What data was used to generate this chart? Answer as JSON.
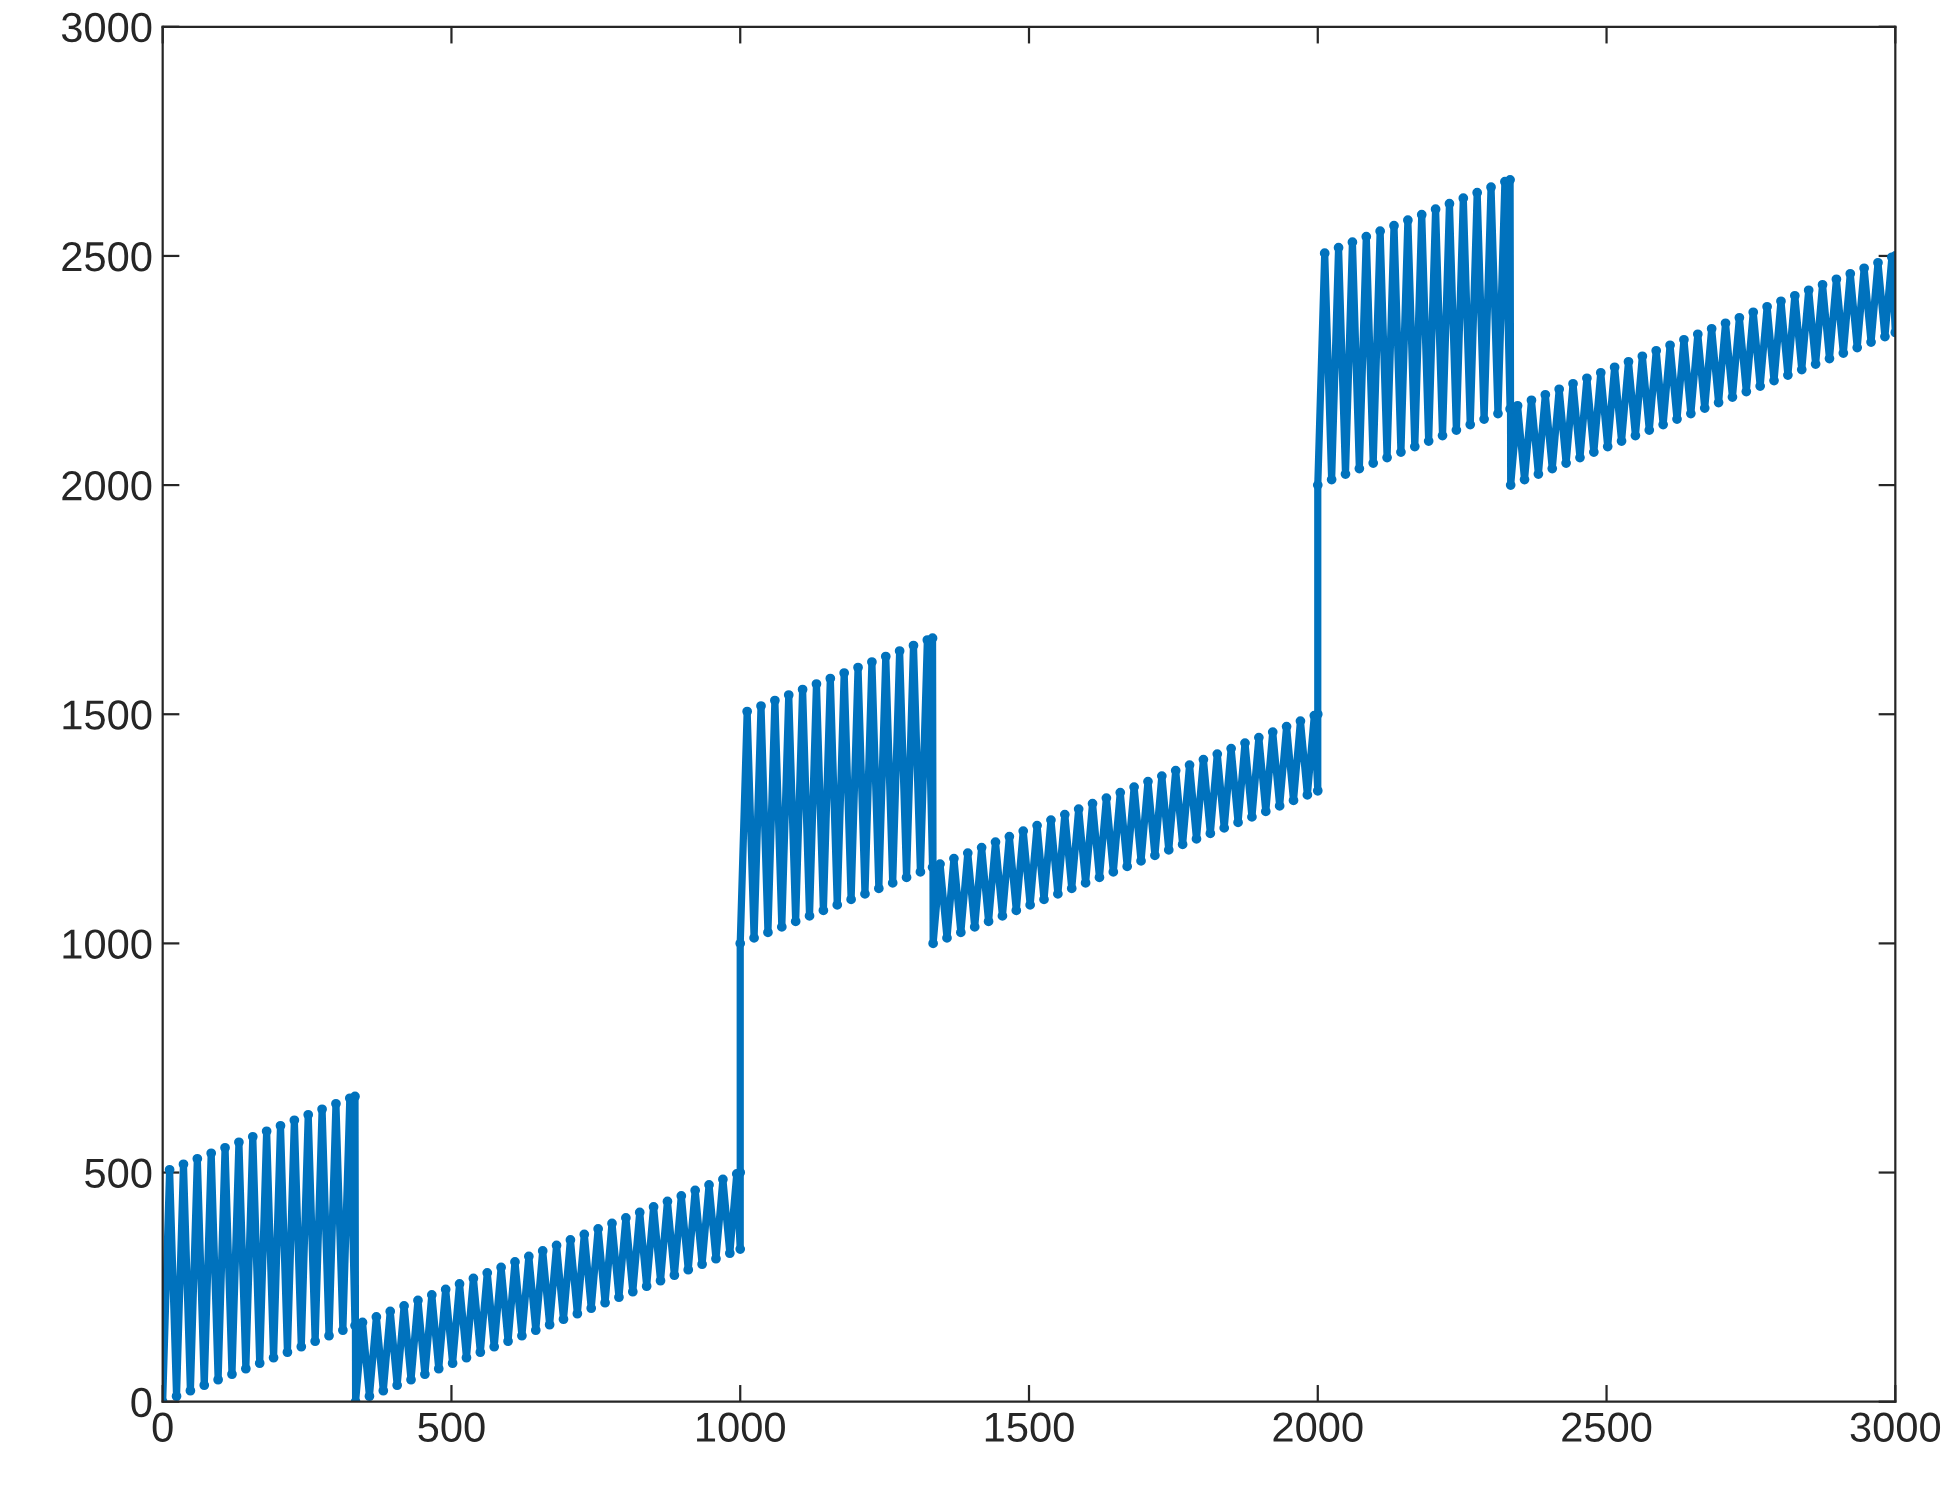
{
  "chart_data": {
    "type": "line",
    "x": [
      0,
      12,
      24,
      36,
      48,
      60,
      72,
      84,
      96,
      108,
      120,
      132,
      144,
      156,
      168,
      180,
      192,
      204,
      216,
      228,
      240,
      252,
      264,
      276,
      288,
      300,
      312,
      324,
      333,
      333,
      334,
      346,
      358,
      370,
      382,
      394,
      406,
      418,
      430,
      442,
      454,
      466,
      478,
      490,
      502,
      514,
      526,
      538,
      550,
      562,
      574,
      586,
      598,
      610,
      622,
      634,
      646,
      658,
      670,
      682,
      694,
      706,
      718,
      730,
      742,
      754,
      766,
      778,
      790,
      802,
      814,
      826,
      838,
      850,
      862,
      874,
      886,
      898,
      910,
      922,
      934,
      946,
      958,
      970,
      982,
      994,
      1000,
      1000,
      1000,
      1012,
      1024,
      1036,
      1048,
      1060,
      1072,
      1084,
      1096,
      1108,
      1120,
      1132,
      1144,
      1156,
      1168,
      1180,
      1192,
      1204,
      1216,
      1228,
      1240,
      1252,
      1264,
      1276,
      1288,
      1300,
      1312,
      1324,
      1333,
      1333,
      1334,
      1346,
      1358,
      1370,
      1382,
      1394,
      1406,
      1418,
      1430,
      1442,
      1454,
      1466,
      1478,
      1490,
      1502,
      1514,
      1526,
      1538,
      1550,
      1562,
      1574,
      1586,
      1598,
      1610,
      1622,
      1634,
      1646,
      1658,
      1670,
      1682,
      1694,
      1706,
      1718,
      1730,
      1742,
      1754,
      1766,
      1778,
      1790,
      1802,
      1814,
      1826,
      1838,
      1850,
      1862,
      1874,
      1886,
      1898,
      1910,
      1922,
      1934,
      1946,
      1958,
      1970,
      1982,
      1994,
      2000,
      2000,
      2000,
      2012,
      2024,
      2036,
      2048,
      2060,
      2072,
      2084,
      2096,
      2108,
      2120,
      2132,
      2144,
      2156,
      2168,
      2180,
      2192,
      2204,
      2216,
      2228,
      2240,
      2252,
      2264,
      2276,
      2288,
      2300,
      2312,
      2324,
      2333,
      2333,
      2334,
      2346,
      2358,
      2370,
      2382,
      2394,
      2406,
      2418,
      2430,
      2442,
      2454,
      2466,
      2478,
      2490,
      2502,
      2514,
      2526,
      2538,
      2550,
      2562,
      2574,
      2586,
      2598,
      2610,
      2622,
      2634,
      2646,
      2658,
      2670,
      2682,
      2694,
      2706,
      2718,
      2730,
      2742,
      2754,
      2766,
      2778,
      2790,
      2802,
      2814,
      2826,
      2838,
      2850,
      2862,
      2874,
      2886,
      2898,
      2910,
      2922,
      2934,
      2946,
      2958,
      2970,
      2982,
      2994,
      3000,
      3000
    ],
    "series": [
      {
        "color": "#0072bd",
        "values": [
          0,
          506,
          12,
          518,
          24,
          530,
          36,
          542,
          48,
          554,
          60,
          566,
          72,
          578,
          84,
          590,
          96,
          602,
          108,
          614,
          120,
          626,
          132,
          638,
          144,
          650,
          156,
          662,
          166,
          666,
          0,
          173,
          12,
          185,
          24,
          197,
          36,
          209,
          48,
          221,
          60,
          233,
          72,
          245,
          84,
          257,
          96,
          269,
          108,
          281,
          120,
          293,
          132,
          305,
          144,
          317,
          156,
          329,
          168,
          341,
          180,
          353,
          192,
          365,
          204,
          377,
          216,
          389,
          228,
          401,
          240,
          413,
          252,
          425,
          264,
          437,
          276,
          449,
          288,
          461,
          300,
          473,
          312,
          485,
          324,
          497,
          333,
          500,
          1000,
          1506,
          1012,
          1518,
          1024,
          1530,
          1036,
          1542,
          1048,
          1554,
          1060,
          1566,
          1072,
          1578,
          1084,
          1590,
          1096,
          1602,
          1108,
          1614,
          1120,
          1626,
          1132,
          1638,
          1144,
          1650,
          1156,
          1662,
          1166,
          1666,
          1000,
          1173,
          1012,
          1185,
          1024,
          1197,
          1036,
          1209,
          1048,
          1221,
          1060,
          1233,
          1072,
          1245,
          1084,
          1257,
          1096,
          1269,
          1108,
          1281,
          1120,
          1293,
          1132,
          1305,
          1144,
          1317,
          1156,
          1329,
          1168,
          1341,
          1180,
          1353,
          1192,
          1365,
          1204,
          1377,
          1216,
          1389,
          1228,
          1401,
          1240,
          1413,
          1252,
          1425,
          1264,
          1437,
          1276,
          1449,
          1288,
          1461,
          1300,
          1473,
          1312,
          1485,
          1324,
          1497,
          1333,
          1500,
          2000,
          2506,
          2012,
          2518,
          2024,
          2530,
          2036,
          2542,
          2048,
          2554,
          2060,
          2566,
          2072,
          2578,
          2084,
          2590,
          2096,
          2602,
          2108,
          2614,
          2120,
          2626,
          2132,
          2638,
          2144,
          2650,
          2156,
          2662,
          2166,
          2666,
          2000,
          2173,
          2012,
          2185,
          2024,
          2197,
          2036,
          2209,
          2048,
          2221,
          2060,
          2233,
          2072,
          2245,
          2084,
          2257,
          2096,
          2269,
          2108,
          2281,
          2120,
          2293,
          2132,
          2305,
          2144,
          2317,
          2156,
          2329,
          2168,
          2341,
          2180,
          2353,
          2192,
          2365,
          2204,
          2377,
          2216,
          2389,
          2228,
          2401,
          2240,
          2413,
          2252,
          2425,
          2264,
          2437,
          2276,
          2449,
          2288,
          2461,
          2300,
          2473,
          2312,
          2485,
          2324,
          2497,
          2333,
          2500
        ]
      }
    ],
    "xlim": [
      0,
      3000
    ],
    "ylim": [
      0,
      3000
    ],
    "xticks": [
      0,
      500,
      1000,
      1500,
      2000,
      2500,
      3000
    ],
    "yticks": [
      0,
      500,
      1000,
      1500,
      2000,
      2500,
      3000
    ],
    "grid": false,
    "legend": false,
    "marker": "circle",
    "line_style": "solid"
  }
}
